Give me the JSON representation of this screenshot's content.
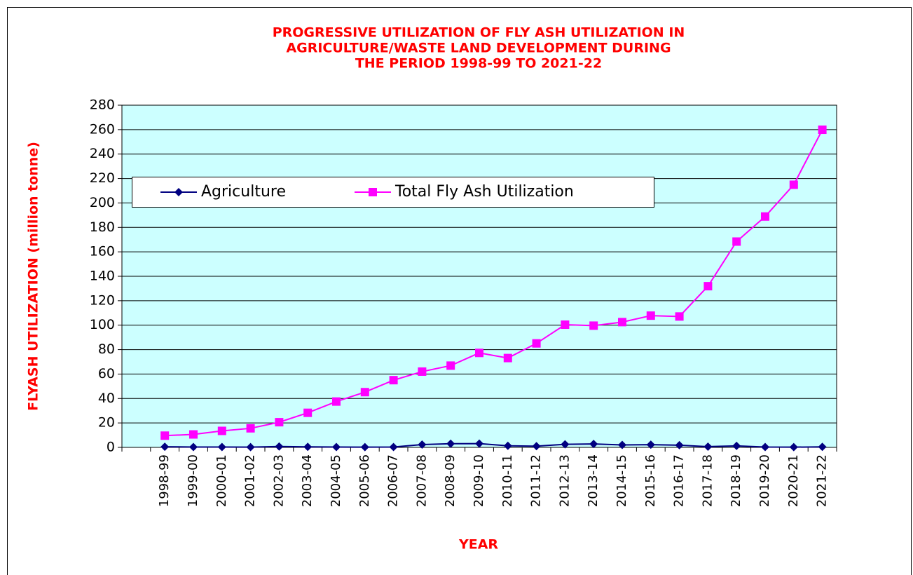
{
  "chart_data": {
    "type": "line",
    "title": [
      "PROGRESSIVE UTILIZATION OF FLY ASH UTILIZATION IN",
      "AGRICULTURE/WASTE LAND DEVELOPMENT DURING",
      "THE PERIOD 1998-99 TO 2021-22"
    ],
    "xlabel": "YEAR",
    "ylabel": "FLYASH UTILIZATION  (million tonne)",
    "categories": [
      null,
      "1998-99",
      "1999-00",
      "2000-01",
      "2001-02",
      "2002-03",
      "2003-04",
      "2004-05",
      "2005-06",
      "2006-07",
      "2007-08",
      "2008-09",
      "2009-10",
      "2010-11",
      "2011-12",
      "2012-13",
      "2013-14",
      "2014-15",
      "2015-16",
      "2016-17",
      "2017-18",
      "2018-19",
      "2019-20",
      "2020-21",
      "2021-22"
    ],
    "series": [
      {
        "name": "Agriculture",
        "color": "#000080",
        "marker": "diamond",
        "values": [
          null,
          0.5,
          0.3,
          0.3,
          0.2,
          0.7,
          0.4,
          0.3,
          0.2,
          0.3,
          2.3,
          3.0,
          3.1,
          1.3,
          1.0,
          2.5,
          2.8,
          2.0,
          2.2,
          1.8,
          0.6,
          1.2,
          0.3,
          0.2,
          0.4
        ]
      },
      {
        "name": "Total Fly Ash Utilization",
        "color": "#ff00ff",
        "marker": "square",
        "values": [
          null,
          9.6,
          10.6,
          13.5,
          15.6,
          20.6,
          28.3,
          37.5,
          45.2,
          55.0,
          62.0,
          66.9,
          77.3,
          73.1,
          85.1,
          100.4,
          99.6,
          102.5,
          107.8,
          107.1,
          131.9,
          168.4,
          188.9,
          214.9,
          259.9
        ]
      }
    ],
    "ylim": [
      0,
      280
    ],
    "yticks": [
      0,
      20,
      40,
      60,
      80,
      100,
      120,
      140,
      160,
      180,
      200,
      220,
      240,
      260,
      280
    ],
    "grid": true,
    "plot_background": "#ccffff",
    "title_color": "#ff0000"
  }
}
